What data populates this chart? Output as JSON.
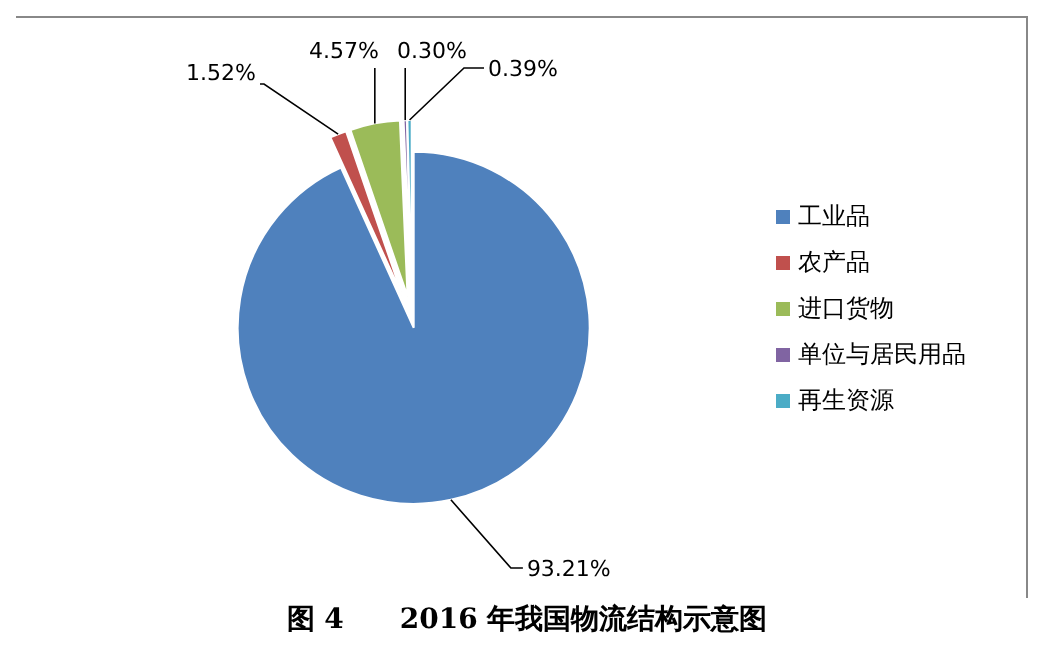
{
  "chart_data": {
    "type": "pie",
    "title": "图 4　　2016 年我国物流结构示意图",
    "categories": [
      "工业品",
      "农产品",
      "进口货物",
      "单位与居民用品",
      "再生资源"
    ],
    "values": [
      93.21,
      1.52,
      4.57,
      0.3,
      0.39
    ],
    "value_labels": [
      "93.21%",
      "1.52%",
      "4.57%",
      "0.30%",
      "0.39%"
    ],
    "colors": [
      "#4f81bd",
      "#c0504d",
      "#9bbb59",
      "#8064a2",
      "#4bacc6"
    ],
    "legend": "right"
  }
}
